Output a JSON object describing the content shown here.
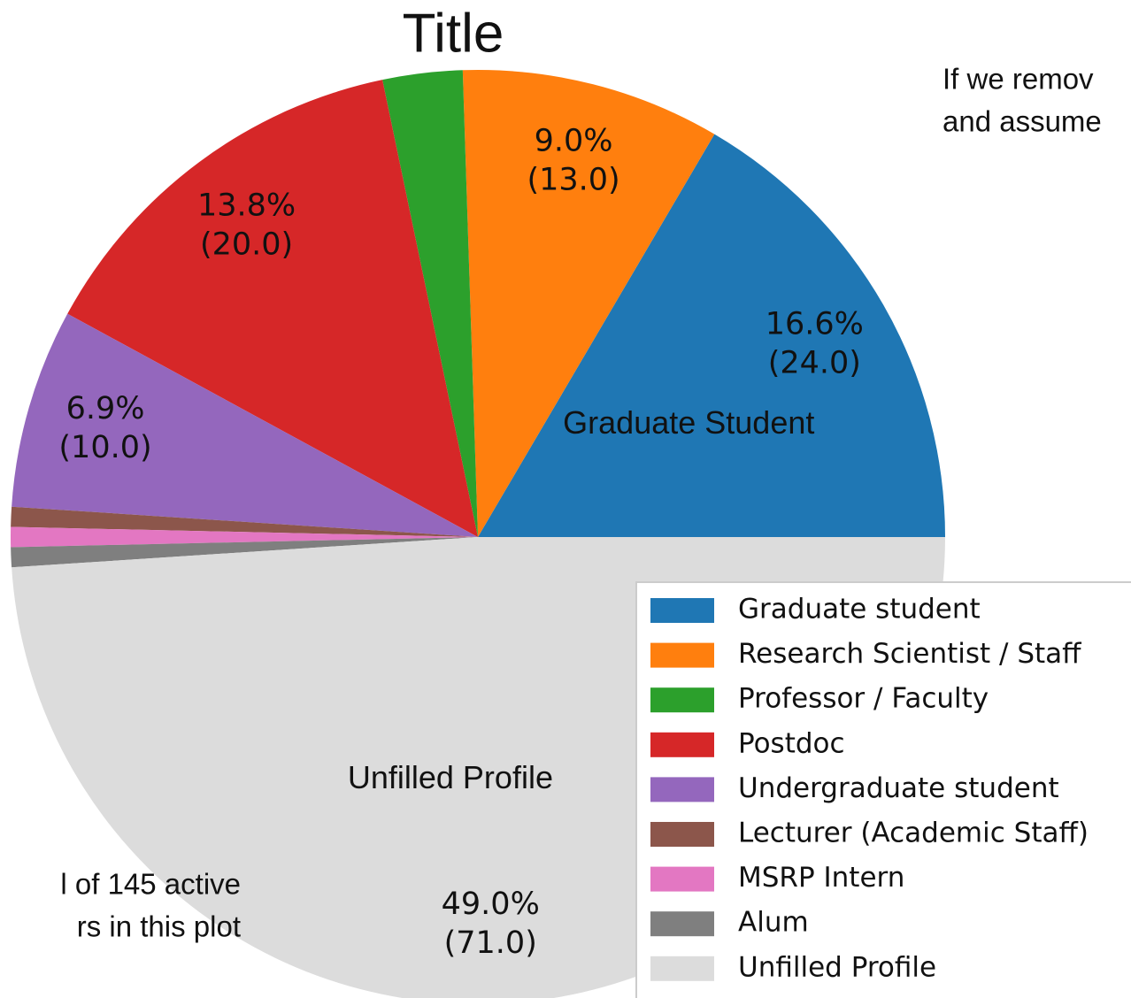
{
  "chart_data": {
    "type": "pie",
    "title": "Title",
    "categories": [
      "Graduate student",
      "Research Scientist / Staff",
      "Professor / Faculty",
      "Postdoc",
      "Undergraduate student",
      "Lecturer (Academic Staff)",
      "MSRP Intern",
      "Alum",
      "Unfilled Profile"
    ],
    "values": [
      24,
      13,
      4,
      20,
      10,
      1,
      1,
      1,
      71
    ],
    "value_labels": [
      [
        "16.6%",
        "(24.0)"
      ],
      [
        "9.0%",
        "(13.0)"
      ],
      null,
      [
        "13.8%",
        "(20.0)"
      ],
      [
        "6.9%",
        "(10.0)"
      ],
      null,
      null,
      null,
      [
        "49.0%",
        "(71.0)"
      ]
    ],
    "slice_labels": [
      "Graduate Student",
      null,
      null,
      null,
      null,
      null,
      null,
      null,
      "Unfilled Profile"
    ],
    "colors": [
      "#1f77b4",
      "#ff7f0e",
      "#2ca02c",
      "#d62728",
      "#9467bd",
      "#8c564b",
      "#e377c2",
      "#7f7f7f",
      "#dcdcdc"
    ],
    "legend": "lower right",
    "annotations": [
      [
        "If we remov",
        "and assume"
      ],
      [
        "l of 145 active",
        "rs in this plot"
      ]
    ]
  }
}
